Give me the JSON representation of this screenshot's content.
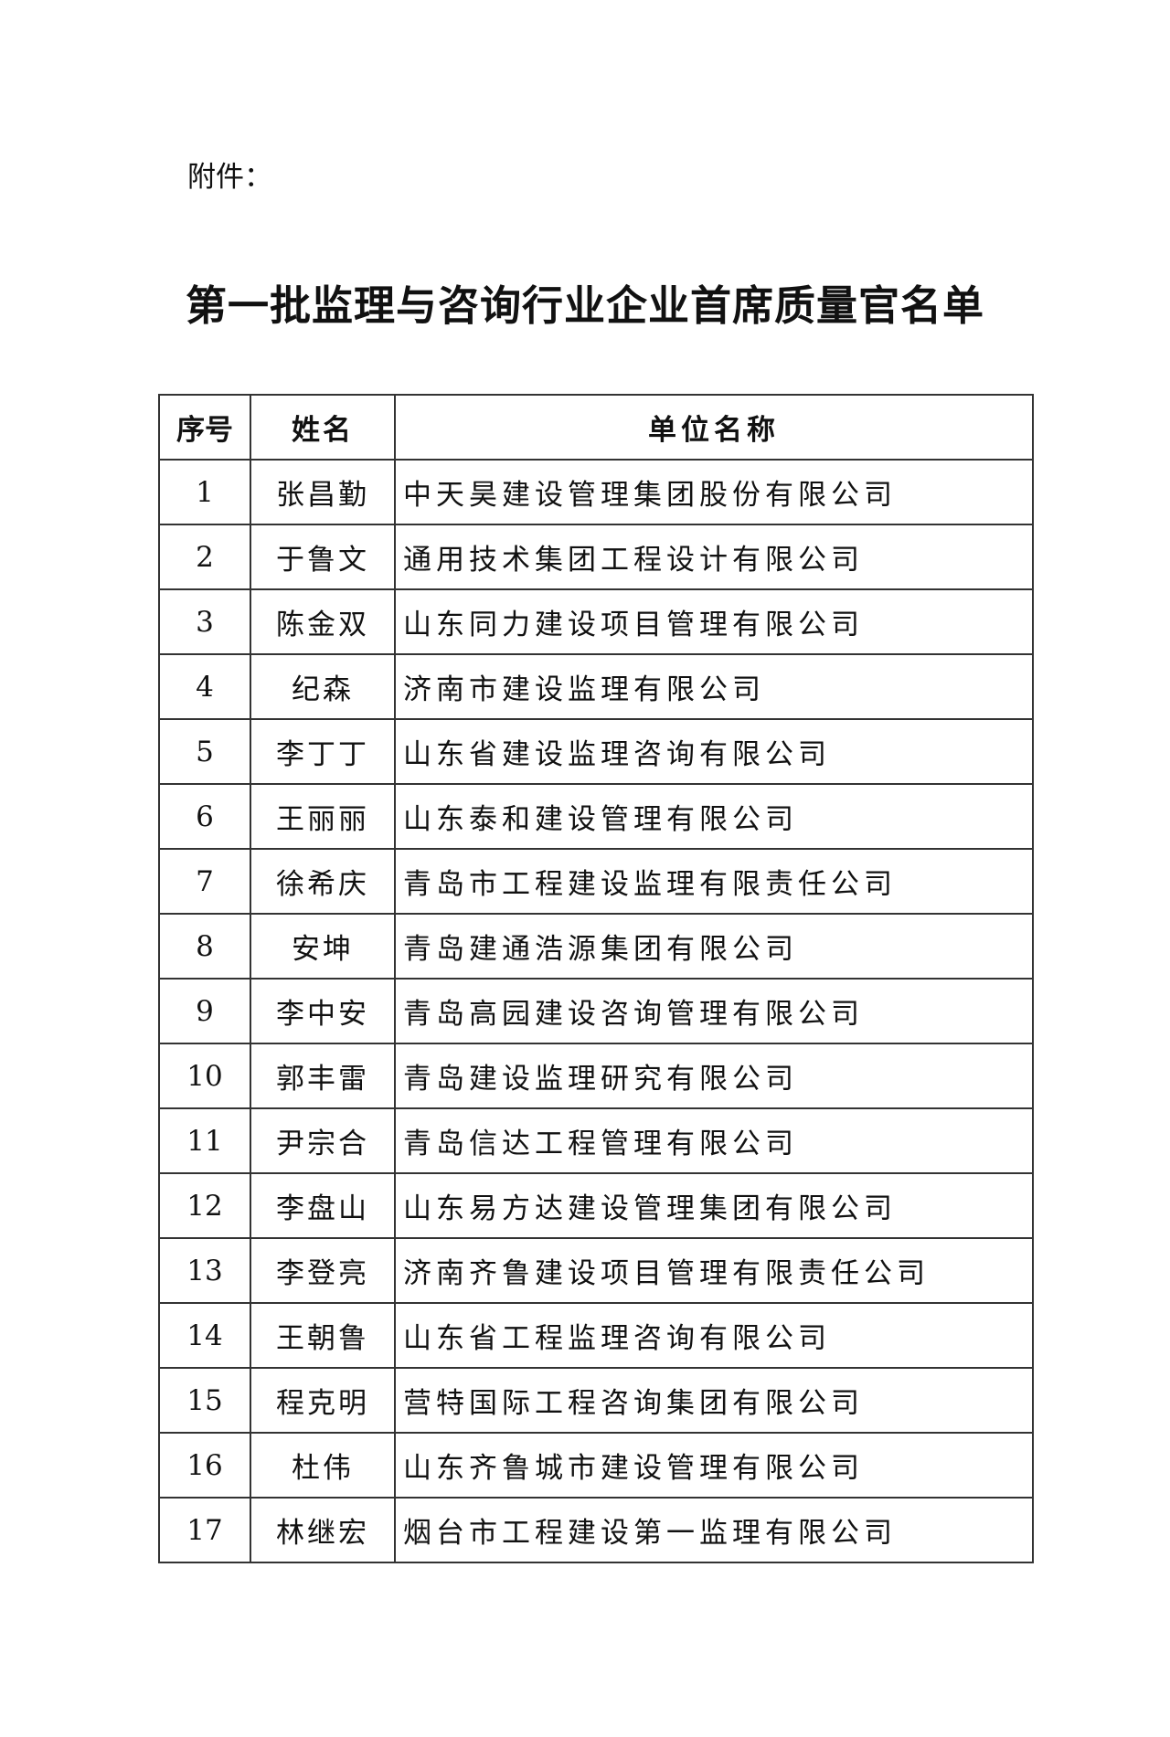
{
  "attachment_label": "附件：",
  "title": "第一批监理与咨询行业企业首席质量官名单",
  "table": {
    "headers": [
      "序号",
      "姓名",
      "单位名称"
    ],
    "rows": [
      [
        "1",
        "张昌勤",
        "中天昊建设管理集团股份有限公司"
      ],
      [
        "2",
        "于鲁文",
        "通用技术集团工程设计有限公司"
      ],
      [
        "3",
        "陈金双",
        "山东同力建设项目管理有限公司"
      ],
      [
        "4",
        "纪森",
        "济南市建设监理有限公司"
      ],
      [
        "5",
        "李丁丁",
        "山东省建设监理咨询有限公司"
      ],
      [
        "6",
        "王丽丽",
        "山东泰和建设管理有限公司"
      ],
      [
        "7",
        "徐希庆",
        "青岛市工程建设监理有限责任公司"
      ],
      [
        "8",
        "安坤",
        "青岛建通浩源集团有限公司"
      ],
      [
        "9",
        "李中安",
        "青岛高园建设咨询管理有限公司"
      ],
      [
        "10",
        "郭丰雷",
        "青岛建设监理研究有限公司"
      ],
      [
        "11",
        "尹宗合",
        "青岛信达工程管理有限公司"
      ],
      [
        "12",
        "李盘山",
        "山东易方达建设管理集团有限公司"
      ],
      [
        "13",
        "李登亮",
        "济南齐鲁建设项目管理有限责任公司"
      ],
      [
        "14",
        "王朝鲁",
        "山东省工程监理咨询有限公司"
      ],
      [
        "15",
        "程克明",
        "营特国际工程咨询集团有限公司"
      ],
      [
        "16",
        "杜伟",
        "山东齐鲁城市建设管理有限公司"
      ],
      [
        "17",
        "林继宏",
        "烟台市工程建设第一监理有限公司"
      ]
    ]
  }
}
